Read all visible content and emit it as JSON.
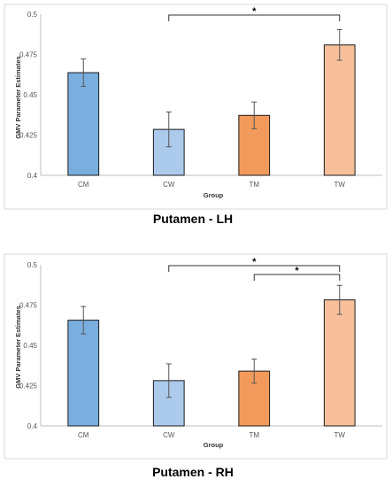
{
  "chart_data": [
    {
      "type": "bar",
      "title": "Putamen - LH",
      "xlabel": "Group",
      "ylabel": "GMV Parameter Estimates",
      "categories": [
        "CM",
        "CW",
        "TM",
        "TW"
      ],
      "values": [
        0.4637,
        0.4285,
        0.4372,
        0.4809
      ],
      "errors": [
        0.0085,
        0.0108,
        0.0083,
        0.0095
      ],
      "colors": [
        "#7aaedf",
        "#abcaec",
        "#f29a5c",
        "#f7c09a"
      ],
      "ylim": [
        0.4,
        0.5
      ],
      "yticks": [
        "0.4",
        "0.425",
        "0.45",
        "0.475",
        "0.5"
      ],
      "grid": false,
      "significance": [
        {
          "from": "CW",
          "to": "TW",
          "label": "*"
        }
      ]
    },
    {
      "type": "bar",
      "title": "Putamen - RH",
      "xlabel": "Group",
      "ylabel": "GMV Parameter Estimates",
      "categories": [
        "CM",
        "CW",
        "TM",
        "TW"
      ],
      "values": [
        0.4656,
        0.4281,
        0.434,
        0.4782
      ],
      "errors": [
        0.0085,
        0.0104,
        0.0075,
        0.009
      ],
      "colors": [
        "#7aaedf",
        "#abcaec",
        "#f29a5c",
        "#f7c09a"
      ],
      "ylim": [
        0.4,
        0.5
      ],
      "yticks": [
        "0.4",
        "0.425",
        "0.45",
        "0.475",
        "0.5"
      ],
      "grid": false,
      "significance": [
        {
          "from": "CW",
          "to": "TW",
          "label": "*"
        },
        {
          "from": "TM",
          "to": "TW",
          "label": "*"
        }
      ]
    }
  ]
}
